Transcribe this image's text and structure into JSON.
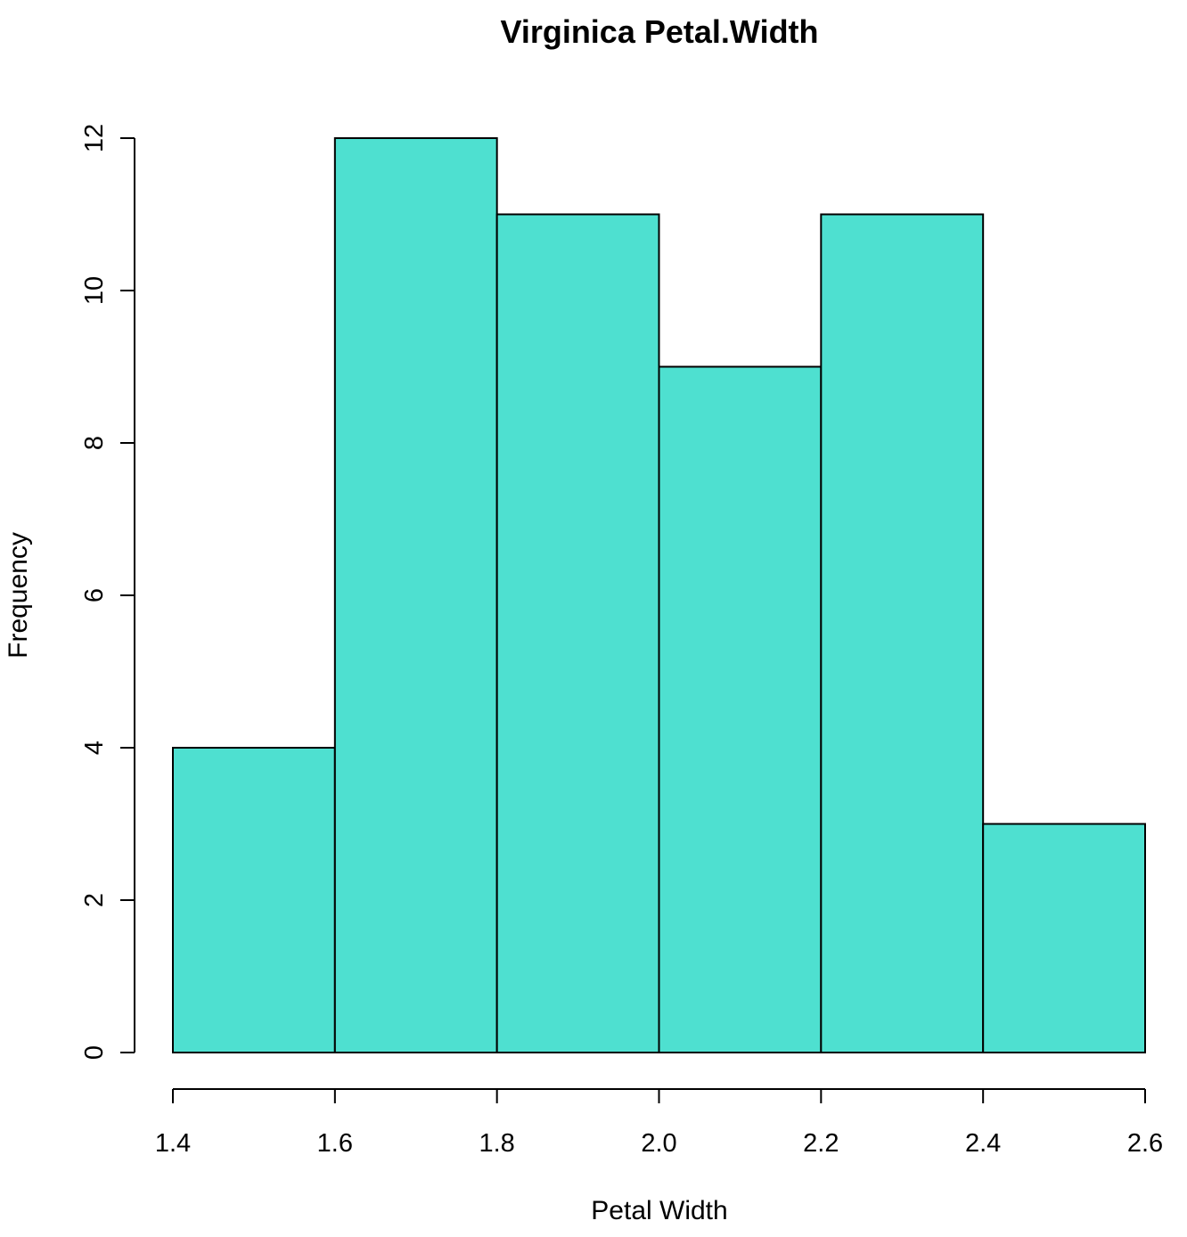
{
  "chart_data": {
    "type": "bar",
    "title": "Virginica Petal.Width",
    "xlabel": "Petal Width",
    "ylabel": "Frequency",
    "bins": [
      {
        "from": 1.4,
        "to": 1.6,
        "count": 4
      },
      {
        "from": 1.6,
        "to": 1.8,
        "count": 12
      },
      {
        "from": 1.8,
        "to": 2.0,
        "count": 11
      },
      {
        "from": 2.0,
        "to": 2.2,
        "count": 9
      },
      {
        "from": 2.2,
        "to": 2.4,
        "count": 11
      },
      {
        "from": 2.4,
        "to": 2.6,
        "count": 3
      }
    ],
    "xlim": [
      1.4,
      2.6
    ],
    "ylim": [
      0,
      12
    ],
    "x_ticks": [
      "1.4",
      "1.6",
      "1.8",
      "2.0",
      "2.2",
      "2.4",
      "2.6"
    ],
    "y_ticks": [
      "0",
      "2",
      "4",
      "6",
      "8",
      "10",
      "12"
    ],
    "bar_color": "#4EE0D0",
    "grid": false,
    "legend": "none"
  }
}
